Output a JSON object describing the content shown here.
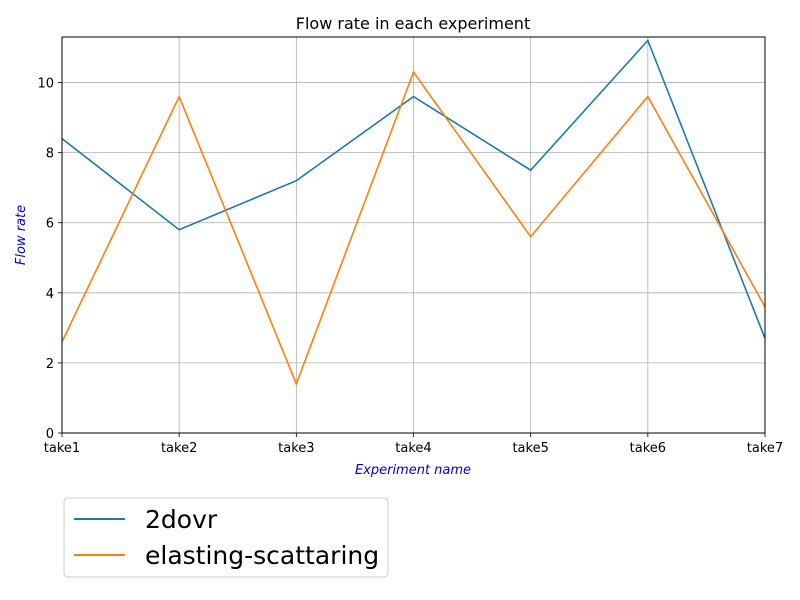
{
  "chart_data": {
    "type": "line",
    "title": "Flow rate in each experiment",
    "xlabel": "Experiment name",
    "ylabel": "Flow rate",
    "label_color": "#0000cc",
    "categories": [
      "take1",
      "take2",
      "take3",
      "take4",
      "take5",
      "take6",
      "take7"
    ],
    "series": [
      {
        "name": "2dovr",
        "color": "#1f77b4",
        "values": [
          8.4,
          5.8,
          7.2,
          9.6,
          7.5,
          11.2,
          2.7
        ]
      },
      {
        "name": "elasting-scattaring",
        "color": "#ff7f0e",
        "values": [
          2.6,
          9.6,
          1.4,
          10.3,
          5.6,
          9.6,
          3.6
        ]
      }
    ],
    "ylim": [
      0,
      11.3
    ],
    "yticks": [
      0,
      2,
      4,
      6,
      8,
      10
    ],
    "grid": true,
    "legend_position": "below-left"
  }
}
